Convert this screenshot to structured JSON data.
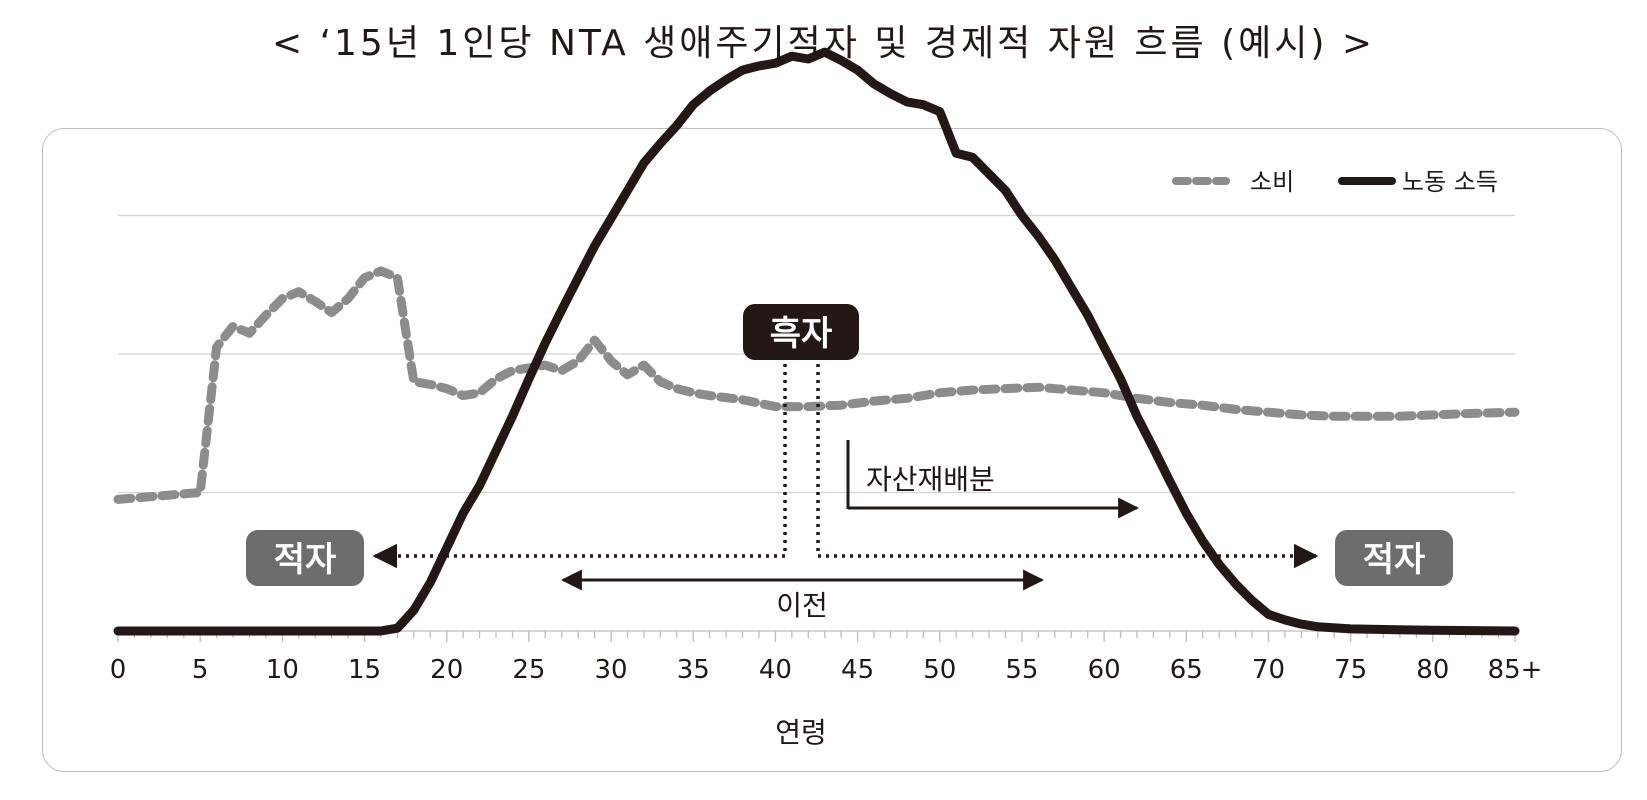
{
  "title": "< ‘15년 1인당 NTA 생애주기적자 및 경제적 자원 흐름 (예시) >",
  "chart_data": {
    "type": "line",
    "xlabel": "연령",
    "ylabel": "",
    "xlim": [
      0,
      85
    ],
    "x_ticks": [
      "0",
      "5",
      "10",
      "15",
      "20",
      "25",
      "30",
      "35",
      "40",
      "45",
      "50",
      "55",
      "60",
      "65",
      "70",
      "75",
      "80",
      "85+"
    ],
    "grid": "horizontal",
    "legend": {
      "position": "top-right"
    },
    "series": [
      {
        "name": "소비",
        "style": "dashed",
        "color": "#8c8c8c",
        "points": [
          [
            0,
            0.95
          ],
          [
            5,
            1.0
          ],
          [
            6,
            2.05
          ],
          [
            7,
            2.2
          ],
          [
            8,
            2.15
          ],
          [
            9,
            2.28
          ],
          [
            10,
            2.4
          ],
          [
            11,
            2.45
          ],
          [
            12,
            2.38
          ],
          [
            13,
            2.3
          ],
          [
            14,
            2.4
          ],
          [
            15,
            2.55
          ],
          [
            16,
            2.6
          ],
          [
            17,
            2.55
          ],
          [
            18,
            1.8
          ],
          [
            19,
            1.78
          ],
          [
            20,
            1.75
          ],
          [
            21,
            1.7
          ],
          [
            22,
            1.72
          ],
          [
            23,
            1.82
          ],
          [
            24,
            1.88
          ],
          [
            25,
            1.9
          ],
          [
            26,
            1.92
          ],
          [
            27,
            1.88
          ],
          [
            28,
            1.95
          ],
          [
            29,
            2.1
          ],
          [
            30,
            1.95
          ],
          [
            31,
            1.85
          ],
          [
            32,
            1.92
          ],
          [
            33,
            1.8
          ],
          [
            34,
            1.75
          ],
          [
            35,
            1.72
          ],
          [
            36,
            1.7
          ],
          [
            38,
            1.67
          ],
          [
            40,
            1.62
          ],
          [
            42,
            1.62
          ],
          [
            44,
            1.63
          ],
          [
            46,
            1.66
          ],
          [
            48,
            1.68
          ],
          [
            50,
            1.72
          ],
          [
            52,
            1.74
          ],
          [
            54,
            1.75
          ],
          [
            56,
            1.76
          ],
          [
            58,
            1.74
          ],
          [
            60,
            1.72
          ],
          [
            62,
            1.68
          ],
          [
            64,
            1.65
          ],
          [
            66,
            1.63
          ],
          [
            68,
            1.6
          ],
          [
            70,
            1.58
          ],
          [
            72,
            1.56
          ],
          [
            74,
            1.55
          ],
          [
            76,
            1.55
          ],
          [
            78,
            1.55
          ],
          [
            80,
            1.56
          ],
          [
            82,
            1.57
          ],
          [
            85,
            1.58
          ]
        ]
      },
      {
        "name": "노동 소득",
        "style": "solid",
        "color": "#231815",
        "points": [
          [
            0,
            0
          ],
          [
            16,
            0
          ],
          [
            17,
            0.02
          ],
          [
            18,
            0.15
          ],
          [
            19,
            0.35
          ],
          [
            20,
            0.6
          ],
          [
            21,
            0.85
          ],
          [
            22,
            1.05
          ],
          [
            23,
            1.3
          ],
          [
            24,
            1.55
          ],
          [
            25,
            1.82
          ],
          [
            26,
            2.08
          ],
          [
            27,
            2.32
          ],
          [
            28,
            2.55
          ],
          [
            29,
            2.78
          ],
          [
            30,
            2.98
          ],
          [
            31,
            3.18
          ],
          [
            32,
            3.38
          ],
          [
            33,
            3.52
          ],
          [
            34,
            3.65
          ],
          [
            35,
            3.8
          ],
          [
            36,
            3.9
          ],
          [
            37,
            3.98
          ],
          [
            38,
            4.05
          ],
          [
            39,
            4.08
          ],
          [
            40,
            4.1
          ],
          [
            41,
            4.15
          ],
          [
            42,
            4.13
          ],
          [
            43,
            4.18
          ],
          [
            44,
            4.12
          ],
          [
            45,
            4.05
          ],
          [
            46,
            3.95
          ],
          [
            47,
            3.88
          ],
          [
            48,
            3.82
          ],
          [
            49,
            3.8
          ],
          [
            50,
            3.75
          ],
          [
            51,
            3.45
          ],
          [
            52,
            3.42
          ],
          [
            53,
            3.3
          ],
          [
            54,
            3.18
          ],
          [
            55,
            3.0
          ],
          [
            56,
            2.85
          ],
          [
            57,
            2.68
          ],
          [
            58,
            2.48
          ],
          [
            59,
            2.28
          ],
          [
            60,
            2.05
          ],
          [
            61,
            1.82
          ],
          [
            62,
            1.55
          ],
          [
            63,
            1.32
          ],
          [
            64,
            1.08
          ],
          [
            65,
            0.85
          ],
          [
            66,
            0.65
          ],
          [
            67,
            0.48
          ],
          [
            68,
            0.34
          ],
          [
            69,
            0.22
          ],
          [
            70,
            0.12
          ],
          [
            71,
            0.08
          ],
          [
            72,
            0.05
          ],
          [
            73,
            0.03
          ],
          [
            75,
            0.015
          ],
          [
            80,
            0.005
          ],
          [
            85,
            0
          ]
        ]
      }
    ],
    "annotations": {
      "surplus": "흑자",
      "deficit_left": "적자",
      "deficit_right": "적자",
      "asset_reallocation": "자산재배분",
      "transfer": "이전"
    }
  }
}
